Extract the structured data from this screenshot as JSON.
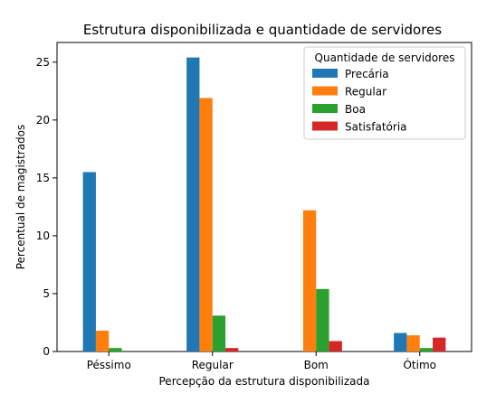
{
  "chart_data": {
    "type": "bar",
    "title": "Estrutura disponibilizada e quantidade de servidores",
    "xlabel": "Percepção da estrutura disponibilizada",
    "ylabel": "Percentual de magistrados",
    "categories": [
      "Péssimo",
      "Regular",
      "Bom",
      "Ótimo"
    ],
    "ylim": [
      0,
      26.7
    ],
    "yticks": [
      0,
      5,
      10,
      15,
      20,
      25
    ],
    "legend": {
      "title": "Quantidade de servidores",
      "placement": "top-right"
    },
    "series": [
      {
        "name": "Precária",
        "color": "#1f77b4",
        "values": [
          15.5,
          25.4,
          0.0,
          1.6
        ]
      },
      {
        "name": "Regular",
        "color": "#ff7f0e",
        "values": [
          1.8,
          21.9,
          12.2,
          1.4
        ]
      },
      {
        "name": "Boa",
        "color": "#2ca02c",
        "values": [
          0.3,
          3.1,
          5.4,
          0.3
        ]
      },
      {
        "name": "Satisfatória",
        "color": "#d62728",
        "values": [
          0.0,
          0.3,
          0.9,
          1.2
        ]
      }
    ]
  }
}
